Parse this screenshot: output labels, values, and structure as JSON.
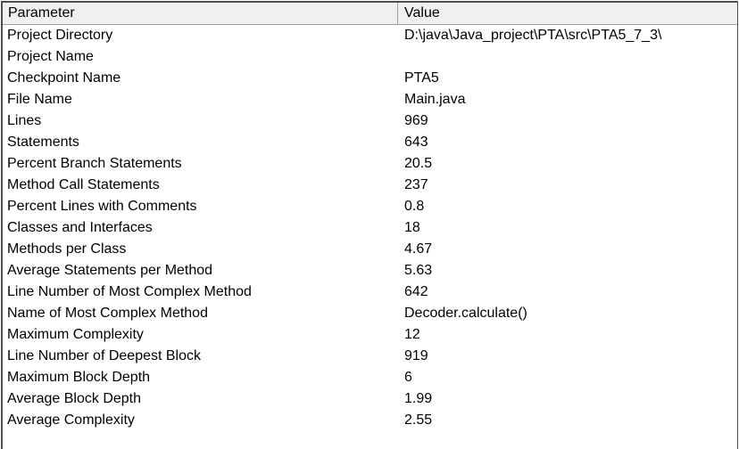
{
  "table": {
    "columns": [
      {
        "label": "Parameter"
      },
      {
        "label": "Value"
      }
    ],
    "rows": [
      {
        "parameter": "Project Directory",
        "value": "D:\\java\\Java_project\\PTA\\src\\PTA5_7_3\\"
      },
      {
        "parameter": "Project Name",
        "value": ""
      },
      {
        "parameter": "Checkpoint Name",
        "value": "PTA5"
      },
      {
        "parameter": "File Name",
        "value": "Main.java"
      },
      {
        "parameter": "Lines",
        "value": "969"
      },
      {
        "parameter": "Statements",
        "value": "643"
      },
      {
        "parameter": "Percent Branch Statements",
        "value": "20.5"
      },
      {
        "parameter": "Method Call Statements",
        "value": "237"
      },
      {
        "parameter": "Percent Lines with Comments",
        "value": "0.8"
      },
      {
        "parameter": "Classes and Interfaces",
        "value": "18"
      },
      {
        "parameter": "Methods per Class",
        "value": "4.67"
      },
      {
        "parameter": "Average Statements per Method",
        "value": "5.63"
      },
      {
        "parameter": "Line Number of Most Complex Method",
        "value": "642"
      },
      {
        "parameter": "Name of Most Complex Method",
        "value": "Decoder.calculate()"
      },
      {
        "parameter": "Maximum Complexity",
        "value": "12"
      },
      {
        "parameter": "Line Number of Deepest Block",
        "value": "919"
      },
      {
        "parameter": "Maximum Block Depth",
        "value": "6"
      },
      {
        "parameter": "Average Block Depth",
        "value": "1.99"
      },
      {
        "parameter": "Average Complexity",
        "value": "2.55"
      }
    ]
  }
}
